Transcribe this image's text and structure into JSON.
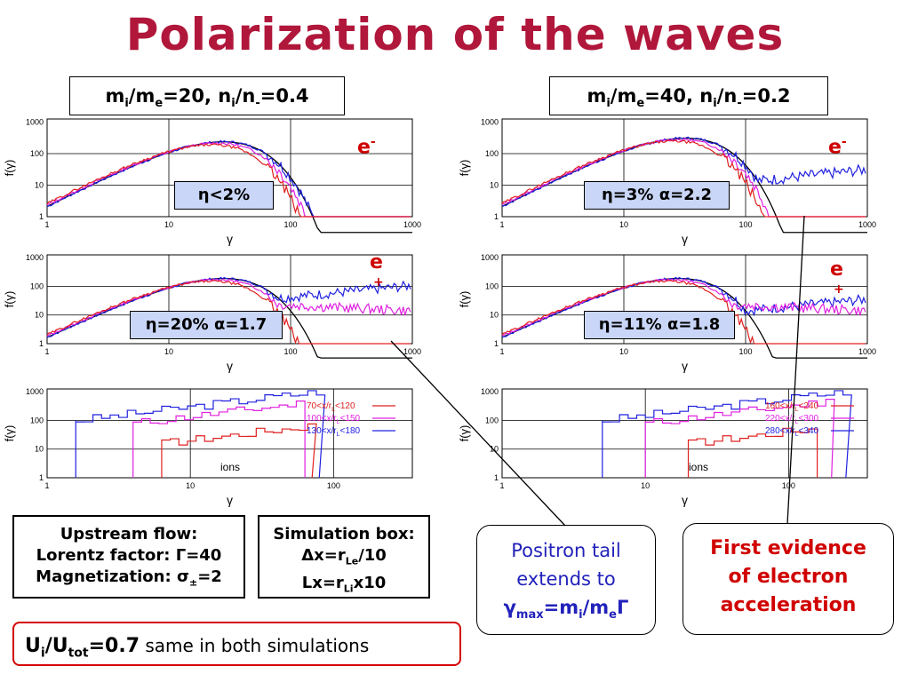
{
  "title": "Polarization of the waves",
  "headers": {
    "left": {
      "a": "m",
      "b": "i",
      "c": "/m",
      "d": "e",
      "e": "=20, n",
      "f": "i",
      "g": "/n",
      "h": "-",
      "i": "=0.4"
    },
    "right": {
      "a": "m",
      "b": "i",
      "c": "/m",
      "d": "e",
      "e": "=40, n",
      "f": "i",
      "g": "/n",
      "h": "-",
      "i": "=0.2"
    }
  },
  "panels": {
    "electrons_left": {
      "eta": "η",
      "text": "<2%"
    },
    "electrons_right": {
      "eta": "η",
      "text": "=3% ",
      "alpha": "α",
      "text2": "=2.2"
    },
    "positrons_left": {
      "eta": "η",
      "text": "=20% ",
      "alpha": "α",
      "text2": "=1.7"
    },
    "positrons_right": {
      "eta": "η",
      "text": "=11% ",
      "alpha": "α",
      "text2": "=1.8"
    }
  },
  "species": {
    "electron": "e",
    "electron_sup": "-",
    "positron": "e",
    "positron_sup": "+",
    "ions": "ions"
  },
  "axes": {
    "ylabel": "f(γ)",
    "xlabel": "γ",
    "yticks": [
      "1000",
      "100",
      "10",
      "1"
    ],
    "xticks_main": [
      "1",
      "10",
      "100",
      "1000"
    ],
    "xticks_ion": [
      "1",
      "10",
      "100"
    ]
  },
  "legend_left": [
    {
      "text": "70<x/r",
      "sub": "L",
      "text2": "<120",
      "color": "#e02020"
    },
    {
      "text": "100<x/r",
      "sub": "L",
      "text2": "<150",
      "color": "#e020e0"
    },
    {
      "text": "130<x/r",
      "sub": "L",
      "text2": "<180",
      "color": "#2020e0"
    }
  ],
  "legend_right": [
    {
      "text": "160<x/r",
      "sub": "L",
      "text2": "<240",
      "color": "#e02020"
    },
    {
      "text": "220<x/r",
      "sub": "L",
      "text2": "<300",
      "color": "#e020e0"
    },
    {
      "text": "280<x/r",
      "sub": "L",
      "text2": "<340",
      "color": "#2020e0"
    }
  ],
  "upstream": {
    "l1": "Upstream flow:",
    "l2a": "Lorentz factor: ",
    "l2b": "Γ",
    "l2c": "=40",
    "l3a": "Magnetization: ",
    "l3b": "σ",
    "l3c": "±",
    "l3d": "=2"
  },
  "simbox": {
    "l1": "Simulation box:",
    "l2a": "Δ",
    "l2b": "x=r",
    "l2c": "Le",
    "l2d": "/10",
    "l3a": "Lx=r",
    "l3b": "Li",
    "l3c": "x10"
  },
  "positron_tail": {
    "l1": "Positron tail",
    "l2": "extends to",
    "l3a": "γ",
    "l3b": "max",
    "l3c": "=m",
    "l3d": "i",
    "l3e": "/m",
    "l3f": "e",
    "l3g": "Γ"
  },
  "first_evidence": {
    "l1": "First evidence",
    "l2": "of electron",
    "l3": "acceleration"
  },
  "bottom": {
    "a": "U",
    "b": "i",
    "c": "/U",
    "d": "tot",
    "e": "=0.7",
    "f": " same in both simulations"
  }
}
